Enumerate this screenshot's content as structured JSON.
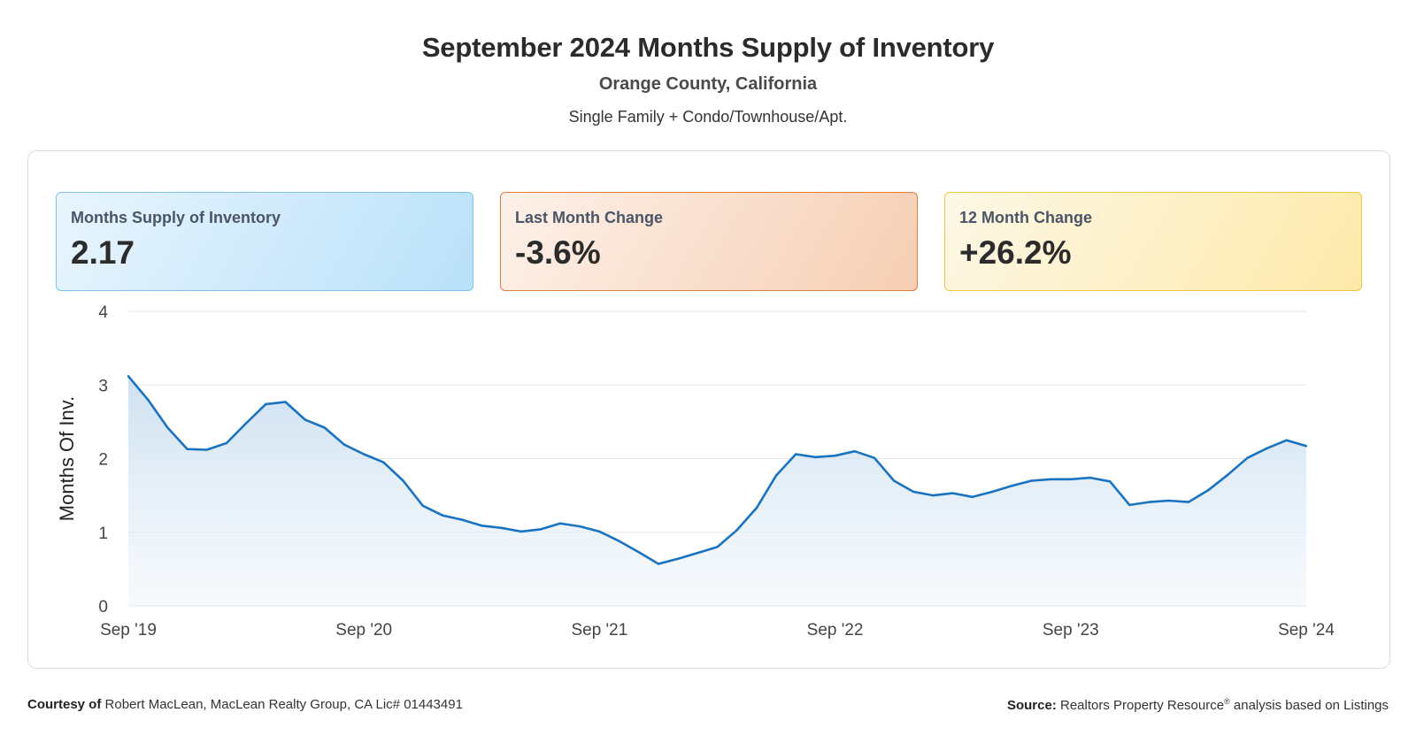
{
  "header": {
    "title": "September 2024 Months Supply of Inventory",
    "subtitle": "Orange County, California",
    "subtitle2": "Single Family + Condo/Townhouse/Apt."
  },
  "cards": [
    {
      "label": "Months Supply of Inventory",
      "value": "2.17",
      "color": "#b9e1fa"
    },
    {
      "label": "Last Month Change",
      "value": "-3.6%",
      "color": "#f6ceb3"
    },
    {
      "label": "12 Month Change",
      "value": "+26.2%",
      "color": "#fde9a9"
    }
  ],
  "chart_data": {
    "type": "area",
    "ylabel": "Months Of Inv.",
    "ylim": [
      0,
      4
    ],
    "yticks": [
      "0",
      "1",
      "2",
      "3",
      "4"
    ],
    "xtick_labels": [
      "Sep '19",
      "Sep '20",
      "Sep '21",
      "Sep '22",
      "Sep '23",
      "Sep '24"
    ],
    "line_color": "#1a73c1",
    "series": [
      {
        "name": "Months Supply of Inventory",
        "values": [
          3.12,
          2.8,
          2.42,
          2.13,
          2.12,
          2.21,
          2.48,
          2.74,
          2.77,
          2.53,
          2.42,
          2.19,
          2.06,
          1.95,
          1.7,
          1.36,
          1.23,
          1.17,
          1.09,
          1.06,
          1.01,
          1.04,
          1.12,
          1.08,
          1.01,
          0.88,
          0.73,
          0.57,
          0.64,
          0.72,
          0.8,
          1.03,
          1.33,
          1.77,
          2.06,
          2.02,
          2.04,
          2.1,
          2.01,
          1.7,
          1.55,
          1.5,
          1.53,
          1.48,
          1.55,
          1.63,
          1.7,
          1.72,
          1.72,
          1.74,
          1.69,
          1.37,
          1.41,
          1.43,
          1.41,
          1.57,
          1.78,
          2.01,
          2.14,
          2.25,
          2.17
        ]
      }
    ]
  },
  "footer": {
    "courtesy_label": "Courtesy of",
    "courtesy_text": "Robert MacLean, MacLean Realty Group, CA Lic# 01443491",
    "source_label": "Source:",
    "source_text": "Realtors Property Resource",
    "source_mark": "®",
    "source_suffix": "analysis based on Listings"
  }
}
